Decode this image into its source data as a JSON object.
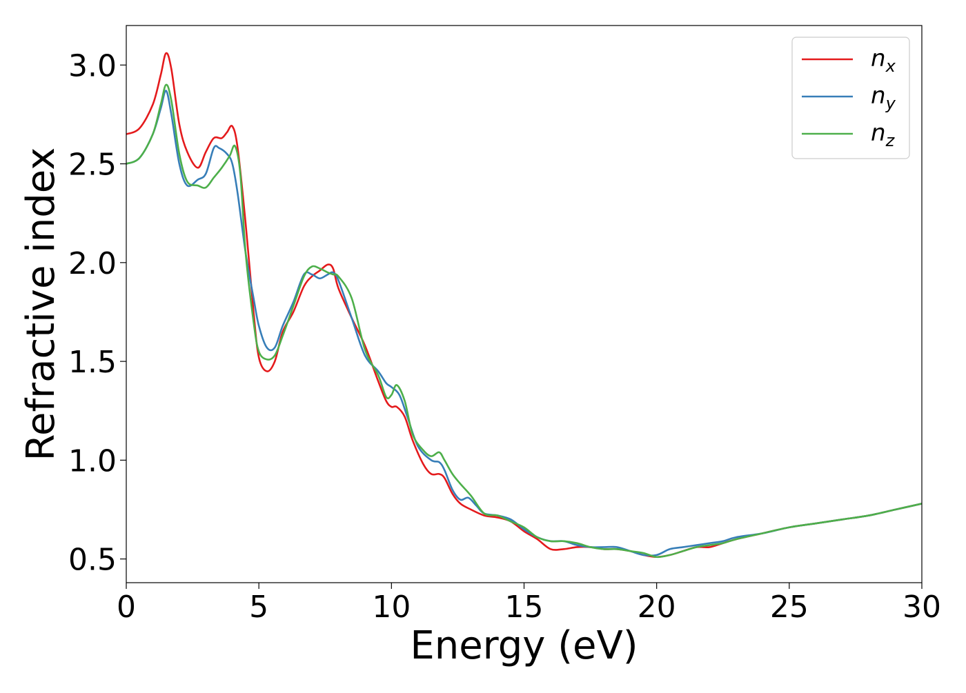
{
  "chart_data": {
    "type": "line",
    "xlabel": "Energy (eV)",
    "ylabel": "Refractive index",
    "xlim": [
      0,
      30
    ],
    "ylim": [
      0.38,
      3.2
    ],
    "xticks": [
      0,
      5,
      10,
      15,
      20,
      25,
      30
    ],
    "xtick_labels": [
      "0",
      "5",
      "10",
      "15",
      "20",
      "25",
      "30"
    ],
    "yticks": [
      0.5,
      1.0,
      1.5,
      2.0,
      2.5,
      3.0
    ],
    "ytick_labels": [
      "0.5",
      "1.0",
      "1.5",
      "2.0",
      "2.5",
      "3.0"
    ],
    "grid": false,
    "legend_position": "top-right",
    "series": [
      {
        "name": "n",
        "subscript": "x",
        "color": "#e41a1c",
        "x": [
          0,
          0.5,
          1.0,
          1.3,
          1.5,
          1.7,
          2.0,
          2.3,
          2.7,
          3.0,
          3.3,
          3.6,
          3.8,
          4.0,
          4.2,
          4.5,
          4.8,
          5.0,
          5.3,
          5.6,
          5.9,
          6.3,
          6.7,
          7.0,
          7.3,
          7.6,
          7.8,
          8.0,
          8.5,
          9.0,
          9.5,
          9.8,
          10.0,
          10.2,
          10.5,
          10.8,
          11.2,
          11.5,
          11.8,
          12.0,
          12.3,
          12.6,
          13.0,
          13.5,
          14.0,
          14.5,
          15.0,
          15.5,
          16.0,
          16.5,
          17.0,
          17.5,
          18.0,
          18.5,
          19.0,
          19.5,
          20.0,
          20.5,
          21.0,
          21.5,
          22.0,
          22.5,
          23.0,
          24.0,
          25.0,
          26.0,
          27.0,
          28.0,
          29.0,
          30.0
        ],
        "y": [
          2.65,
          2.68,
          2.8,
          2.95,
          3.06,
          2.98,
          2.7,
          2.56,
          2.48,
          2.56,
          2.63,
          2.63,
          2.66,
          2.69,
          2.58,
          2.2,
          1.75,
          1.52,
          1.45,
          1.5,
          1.65,
          1.75,
          1.88,
          1.93,
          1.96,
          1.99,
          1.97,
          1.87,
          1.72,
          1.58,
          1.4,
          1.3,
          1.27,
          1.27,
          1.22,
          1.1,
          0.98,
          0.93,
          0.93,
          0.91,
          0.83,
          0.78,
          0.75,
          0.72,
          0.71,
          0.69,
          0.64,
          0.6,
          0.55,
          0.55,
          0.56,
          0.56,
          0.55,
          0.55,
          0.54,
          0.52,
          0.51,
          0.52,
          0.54,
          0.56,
          0.56,
          0.58,
          0.6,
          0.63,
          0.66,
          0.68,
          0.7,
          0.72,
          0.75,
          0.78
        ]
      },
      {
        "name": "n",
        "subscript": "y",
        "color": "#377eb8",
        "x": [
          0,
          0.5,
          1.0,
          1.3,
          1.5,
          1.7,
          2.0,
          2.3,
          2.7,
          3.0,
          3.3,
          3.5,
          3.8,
          4.0,
          4.2,
          4.5,
          4.8,
          5.0,
          5.3,
          5.6,
          5.9,
          6.3,
          6.7,
          7.0,
          7.3,
          7.6,
          7.8,
          8.0,
          8.5,
          9.0,
          9.5,
          9.8,
          10.0,
          10.3,
          10.6,
          11.0,
          11.5,
          11.8,
          12.0,
          12.3,
          12.6,
          12.9,
          13.2,
          13.5,
          14.0,
          14.5,
          15.0,
          15.5,
          16.0,
          16.5,
          17.0,
          17.5,
          18.0,
          18.5,
          19.0,
          19.5,
          20.0,
          20.5,
          21.0,
          21.5,
          22.0,
          22.5,
          23.0,
          24.0,
          25.0,
          26.0,
          27.0,
          28.0,
          29.0,
          30.0
        ],
        "y": [
          2.5,
          2.53,
          2.65,
          2.78,
          2.87,
          2.75,
          2.5,
          2.39,
          2.42,
          2.45,
          2.58,
          2.58,
          2.55,
          2.5,
          2.35,
          2.05,
          1.82,
          1.68,
          1.57,
          1.57,
          1.68,
          1.8,
          1.94,
          1.94,
          1.92,
          1.94,
          1.95,
          1.91,
          1.72,
          1.53,
          1.45,
          1.39,
          1.37,
          1.33,
          1.22,
          1.07,
          1.0,
          0.99,
          0.95,
          0.85,
          0.8,
          0.81,
          0.77,
          0.73,
          0.72,
          0.7,
          0.65,
          0.61,
          0.59,
          0.59,
          0.57,
          0.56,
          0.56,
          0.56,
          0.54,
          0.52,
          0.52,
          0.55,
          0.56,
          0.57,
          0.58,
          0.59,
          0.61,
          0.63,
          0.66,
          0.68,
          0.7,
          0.72,
          0.75,
          0.78
        ]
      },
      {
        "name": "n",
        "subscript": "z",
        "color": "#4daf4a",
        "x": [
          0,
          0.5,
          1.0,
          1.3,
          1.5,
          1.7,
          2.0,
          2.3,
          2.7,
          3.0,
          3.3,
          3.6,
          3.9,
          4.1,
          4.3,
          4.5,
          4.8,
          5.0,
          5.3,
          5.6,
          5.9,
          6.3,
          6.7,
          7.0,
          7.3,
          7.6,
          7.8,
          8.0,
          8.5,
          9.0,
          9.5,
          9.8,
          10.0,
          10.2,
          10.5,
          10.8,
          11.2,
          11.5,
          11.8,
          12.0,
          12.3,
          12.6,
          13.0,
          13.5,
          14.0,
          14.5,
          15.0,
          15.5,
          16.0,
          16.5,
          17.0,
          17.5,
          18.0,
          18.5,
          19.0,
          19.5,
          20.0,
          20.5,
          21.0,
          21.5,
          22.0,
          22.5,
          23.0,
          24.0,
          25.0,
          26.0,
          27.0,
          28.0,
          29.0,
          30.0
        ],
        "y": [
          2.5,
          2.53,
          2.65,
          2.8,
          2.9,
          2.82,
          2.55,
          2.41,
          2.39,
          2.38,
          2.43,
          2.48,
          2.54,
          2.59,
          2.45,
          2.05,
          1.7,
          1.55,
          1.51,
          1.53,
          1.63,
          1.78,
          1.93,
          1.98,
          1.97,
          1.95,
          1.94,
          1.93,
          1.82,
          1.56,
          1.43,
          1.32,
          1.33,
          1.38,
          1.3,
          1.13,
          1.05,
          1.02,
          1.04,
          1.0,
          0.93,
          0.88,
          0.82,
          0.73,
          0.72,
          0.69,
          0.66,
          0.61,
          0.59,
          0.59,
          0.58,
          0.56,
          0.55,
          0.55,
          0.54,
          0.53,
          0.51,
          0.52,
          0.54,
          0.56,
          0.57,
          0.58,
          0.6,
          0.63,
          0.66,
          0.68,
          0.7,
          0.72,
          0.75,
          0.78
        ]
      }
    ]
  }
}
